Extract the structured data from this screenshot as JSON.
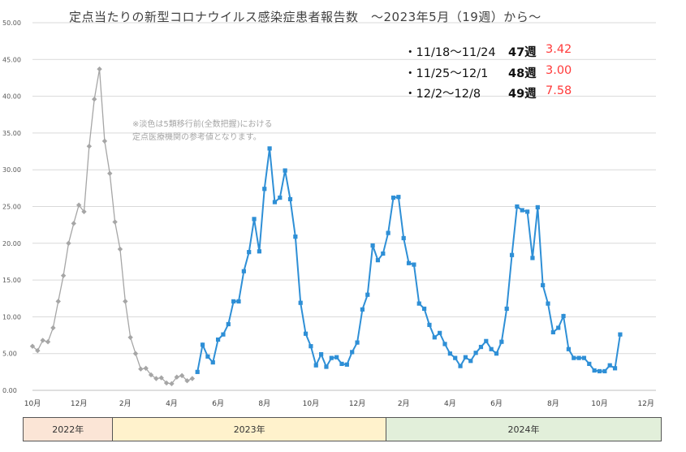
{
  "title": "定点当たりの新型コロナウイルス感染症患者報告数　～2023年5月（19週）から～",
  "summary": [
    {
      "range": "・11/18～11/24",
      "week": "47週",
      "value": "3.42"
    },
    {
      "range": "・11/25～12/1",
      "week": "48週",
      "value": "3.00"
    },
    {
      "range": "・12/2～12/8",
      "week": "49週",
      "value": "7.58"
    }
  ],
  "note_lines": [
    "※淡色は5類移行前(全数把握)における",
    "定点医療機関の参考値となります。"
  ],
  "years": [
    {
      "label": "2022年",
      "color": "#fbe5d6"
    },
    {
      "label": "2023年",
      "color": "#fff2cc"
    },
    {
      "label": "2024年",
      "color": "#e2efda"
    }
  ],
  "chart_data": {
    "type": "line",
    "title": "定点当たりの新型コロナウイルス感染症患者報告数　～2023年5月（19週）から～",
    "xlabel": "",
    "ylabel": "",
    "ylim": [
      0,
      50
    ],
    "yticks": [
      "0.00",
      "5.00",
      "10.00",
      "15.00",
      "20.00",
      "25.00",
      "30.00",
      "35.00",
      "40.00",
      "45.00",
      "50.00"
    ],
    "month_ticks": [
      {
        "label": "10月",
        "week_index": 0
      },
      {
        "label": "12月",
        "week_index": 9
      },
      {
        "label": "2月",
        "week_index": 18
      },
      {
        "label": "4月",
        "week_index": 27
      },
      {
        "label": "6月",
        "week_index": 36
      },
      {
        "label": "8月",
        "week_index": 45
      },
      {
        "label": "10月",
        "week_index": 54
      },
      {
        "label": "12月",
        "week_index": 63
      },
      {
        "label": "2月",
        "week_index": 72
      },
      {
        "label": "4月",
        "week_index": 81
      },
      {
        "label": "6月",
        "week_index": 90
      },
      {
        "label": "8月",
        "week_index": 101
      },
      {
        "label": "10月",
        "week_index": 110
      },
      {
        "label": "12月",
        "week_index": 119
      }
    ],
    "year_spans": [
      {
        "label": "2022年",
        "start_week": -1,
        "end_week": 15.5
      },
      {
        "label": "2023年",
        "start_week": 15.5,
        "end_week": 68.5
      },
      {
        "label": "2024年",
        "start_week": 68.5,
        "end_week": 121.5
      }
    ],
    "grid": true,
    "series": [
      {
        "name": "",
        "role": "reference",
        "color": "#a6a6a6",
        "marker": "diamond",
        "values": [
          6.0,
          5.4,
          6.8,
          6.6,
          8.5,
          12.1,
          15.6,
          20.0,
          22.7,
          25.2,
          24.3,
          33.2,
          39.6,
          43.7,
          33.9,
          29.5,
          22.9,
          19.2,
          12.1,
          7.2,
          5.0,
          2.9,
          3.0,
          2.1,
          1.6,
          1.7,
          1.0,
          0.9,
          1.8,
          2.0,
          1.3,
          1.6
        ]
      },
      {
        "name": "",
        "role": "sentinel",
        "color": "#2e8fd6",
        "marker": "square",
        "values": [
          2.5,
          6.2,
          4.6,
          3.8,
          6.9,
          7.6,
          9.0,
          12.1,
          12.1,
          16.2,
          18.8,
          23.3,
          18.9,
          27.4,
          32.9,
          25.6,
          26.2,
          29.9,
          26.0,
          20.9,
          11.9,
          7.7,
          6.0,
          3.4,
          4.9,
          3.2,
          4.4,
          4.5,
          3.6,
          3.5,
          5.2,
          6.5,
          11.0,
          13.0,
          19.7,
          17.7,
          18.6,
          21.4,
          26.2,
          26.3,
          20.7,
          17.3,
          17.1,
          11.8,
          11.1,
          8.9,
          7.2,
          7.8,
          6.3,
          5.0,
          4.4,
          3.3,
          4.5,
          4.0,
          5.1,
          5.9,
          6.7,
          5.6,
          5.0,
          6.6,
          11.1,
          18.4,
          25.0,
          24.5,
          24.3,
          18.0,
          24.9,
          14.3,
          11.8,
          7.9,
          8.5,
          10.1,
          5.6,
          4.4,
          4.4,
          4.4,
          3.6,
          2.7,
          2.6,
          2.6,
          3.4,
          3.0,
          7.6
        ]
      }
    ]
  }
}
